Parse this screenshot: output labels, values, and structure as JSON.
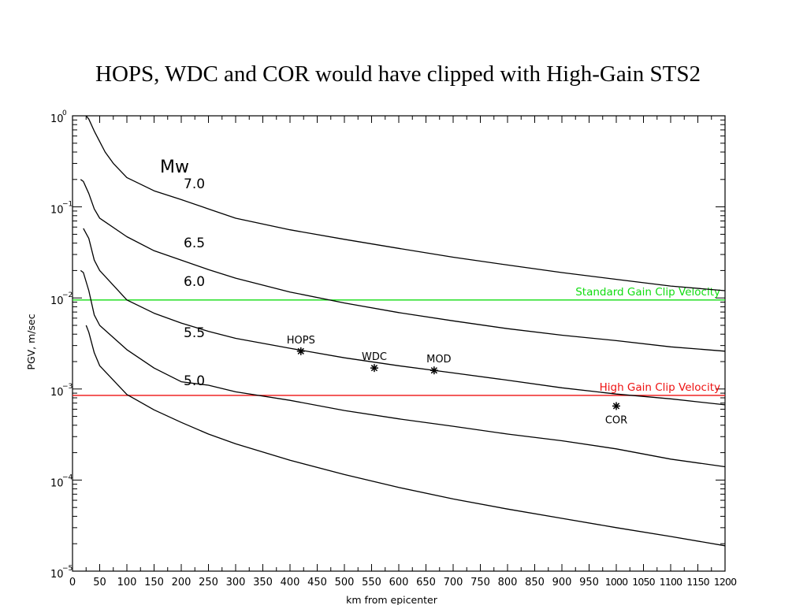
{
  "page": {
    "title": "HOPS, WDC and COR would have clipped with High-Gain STS2"
  },
  "chart_data": {
    "type": "line",
    "title": "HOPS, WDC and COR would have clipped with High-Gain STS2",
    "xlabel": "km  from  epicenter",
    "ylabel": "PGV,  m/sec",
    "xlim": [
      0,
      1200
    ],
    "ylim": [
      1e-05,
      1
    ],
    "yscale": "log",
    "grid": false,
    "x_ticks": [
      0,
      50,
      100,
      150,
      200,
      250,
      300,
      350,
      400,
      450,
      500,
      550,
      600,
      650,
      700,
      750,
      800,
      850,
      900,
      950,
      1000,
      1050,
      1100,
      1150,
      1200
    ],
    "x_tick_labels": [
      "0",
      "50",
      "100",
      "150",
      "200",
      "250",
      "300",
      "350",
      "400",
      "450",
      "500",
      "550",
      "600",
      "650",
      "700",
      "750",
      "800",
      "850",
      "900",
      "950",
      "1000",
      "1050",
      "1100",
      "1150",
      "1200"
    ],
    "y_ticks": [
      {
        "value": 1,
        "base": "10",
        "exp": "0"
      },
      {
        "value": 0.1,
        "base": "10",
        "exp": "−1"
      },
      {
        "value": 0.01,
        "base": "10",
        "exp": "−2"
      },
      {
        "value": 0.001,
        "base": "10",
        "exp": "−3"
      },
      {
        "value": 0.0001,
        "base": "10",
        "exp": "−4"
      },
      {
        "value": 1e-05,
        "base": "10",
        "exp": "−5"
      }
    ],
    "magnitude_header": "Mw",
    "series": [
      {
        "name": "7.0",
        "points": [
          [
            25,
            1.0
          ],
          [
            30,
            0.92
          ],
          [
            40,
            0.68
          ],
          [
            60,
            0.4
          ],
          [
            75,
            0.3
          ],
          [
            100,
            0.21
          ],
          [
            150,
            0.15
          ],
          [
            200,
            0.12
          ],
          [
            250,
            0.095
          ],
          [
            300,
            0.075
          ],
          [
            400,
            0.056
          ],
          [
            500,
            0.044
          ],
          [
            600,
            0.035
          ],
          [
            700,
            0.028
          ],
          [
            800,
            0.023
          ],
          [
            900,
            0.019
          ],
          [
            1000,
            0.016
          ],
          [
            1100,
            0.0135
          ],
          [
            1200,
            0.012
          ]
        ]
      },
      {
        "name": "6.5",
        "points": [
          [
            15,
            0.2
          ],
          [
            20,
            0.19
          ],
          [
            30,
            0.14
          ],
          [
            40,
            0.095
          ],
          [
            50,
            0.075
          ],
          [
            100,
            0.047
          ],
          [
            150,
            0.033
          ],
          [
            200,
            0.026
          ],
          [
            250,
            0.0205
          ],
          [
            300,
            0.0165
          ],
          [
            400,
            0.0116
          ],
          [
            500,
            0.0088
          ],
          [
            600,
            0.0069
          ],
          [
            700,
            0.0056
          ],
          [
            800,
            0.0046
          ],
          [
            900,
            0.0039
          ],
          [
            1000,
            0.0034
          ],
          [
            1100,
            0.0029
          ],
          [
            1200,
            0.0026
          ]
        ]
      },
      {
        "name": "6.0",
        "points": [
          [
            20,
            0.058
          ],
          [
            30,
            0.045
          ],
          [
            40,
            0.026
          ],
          [
            50,
            0.02
          ],
          [
            100,
            0.0095
          ],
          [
            150,
            0.0068
          ],
          [
            200,
            0.0053
          ],
          [
            250,
            0.0043
          ],
          [
            300,
            0.0036
          ],
          [
            400,
            0.0028
          ],
          [
            500,
            0.0022
          ],
          [
            600,
            0.0018
          ],
          [
            700,
            0.0015
          ],
          [
            800,
            0.00125
          ],
          [
            900,
            0.00103
          ],
          [
            1000,
            0.00088
          ],
          [
            1100,
            0.00078
          ],
          [
            1200,
            0.00067
          ]
        ]
      },
      {
        "name": "5.5",
        "points": [
          [
            15,
            0.02
          ],
          [
            20,
            0.019
          ],
          [
            30,
            0.012
          ],
          [
            40,
            0.0065
          ],
          [
            50,
            0.005
          ],
          [
            100,
            0.0027
          ],
          [
            150,
            0.0017
          ],
          [
            200,
            0.0012
          ],
          [
            250,
            0.0011
          ],
          [
            300,
            0.00093
          ],
          [
            400,
            0.00075
          ],
          [
            500,
            0.00058
          ],
          [
            600,
            0.00047
          ],
          [
            700,
            0.00039
          ],
          [
            800,
            0.00032
          ],
          [
            900,
            0.00027
          ],
          [
            1000,
            0.00022
          ],
          [
            1100,
            0.00017
          ],
          [
            1200,
            0.00014
          ]
        ]
      },
      {
        "name": "5.0",
        "points": [
          [
            25,
            0.005
          ],
          [
            30,
            0.0042
          ],
          [
            40,
            0.0025
          ],
          [
            50,
            0.0018
          ],
          [
            100,
            0.00087
          ],
          [
            150,
            0.00059
          ],
          [
            200,
            0.00043
          ],
          [
            250,
            0.00032
          ],
          [
            300,
            0.00025
          ],
          [
            400,
            0.000165
          ],
          [
            500,
            0.000115
          ],
          [
            600,
            8.3e-05
          ],
          [
            700,
            6.2e-05
          ],
          [
            800,
            4.8e-05
          ],
          [
            900,
            3.8e-05
          ],
          [
            1000,
            3e-05
          ],
          [
            1100,
            2.4e-05
          ],
          [
            1200,
            1.9e-05
          ]
        ]
      }
    ],
    "curve_labels": [
      {
        "text": "7.0",
        "x": 200,
        "y": 0.16
      },
      {
        "text": "6.5",
        "x": 200,
        "y": 0.036
      },
      {
        "text": "6.0",
        "x": 200,
        "y": 0.0135
      },
      {
        "text": "5.5",
        "x": 200,
        "y": 0.0037
      },
      {
        "text": "5.0",
        "x": 200,
        "y": 0.0011
      }
    ],
    "reference_lines": [
      {
        "name": "Standard Gain Clip Velocity",
        "y": 0.0095,
        "color": "#11dd11"
      },
      {
        "name": "High Gain Clip Velocity",
        "y": 0.00085,
        "color": "#ee1111"
      }
    ],
    "stations": [
      {
        "name": "HOPS",
        "x": 420,
        "y": 0.0026,
        "label_pos": "above"
      },
      {
        "name": "WDC",
        "x": 555,
        "y": 0.0017,
        "label_pos": "above"
      },
      {
        "name": "MOD",
        "x": 665,
        "y": 0.0016,
        "label_pos": "above-right"
      },
      {
        "name": "COR",
        "x": 1000,
        "y": 0.00065,
        "label_pos": "below"
      }
    ]
  }
}
